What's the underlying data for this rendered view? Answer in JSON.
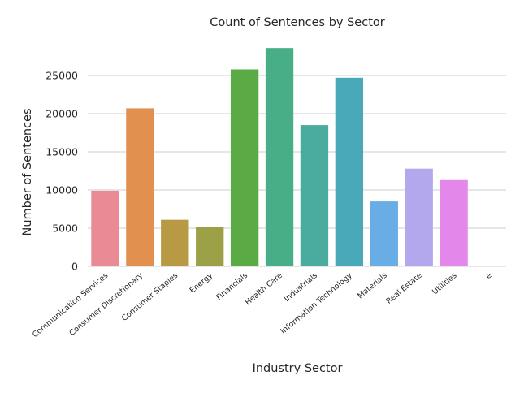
{
  "chart_data": {
    "type": "bar",
    "title": "Count of Sentences by Sector",
    "xlabel": "Industry Sector",
    "ylabel": "Number of Sentences",
    "categories": [
      "Communication Services",
      "Consumer Discretionary",
      "Consumer Staples",
      "Energy",
      "Financials",
      "Health Care",
      "Industrials",
      "Information Technology",
      "Materials",
      "Real Estate",
      "Utilities",
      "e"
    ],
    "values": [
      9900,
      20700,
      6100,
      5200,
      25800,
      28600,
      18500,
      24700,
      8500,
      12800,
      11300,
      0
    ],
    "colors": [
      "#e98a95",
      "#e2904f",
      "#b89a45",
      "#9ca148",
      "#5aaa46",
      "#47ae87",
      "#49ac9e",
      "#4aa9b8",
      "#68ade6",
      "#b3a8ee",
      "#e387ea",
      "#e98fc6"
    ],
    "ylim": [
      0,
      30000
    ],
    "yticks": [
      0,
      5000,
      10000,
      15000,
      20000,
      25000
    ],
    "grid": "y",
    "legend": "none"
  }
}
